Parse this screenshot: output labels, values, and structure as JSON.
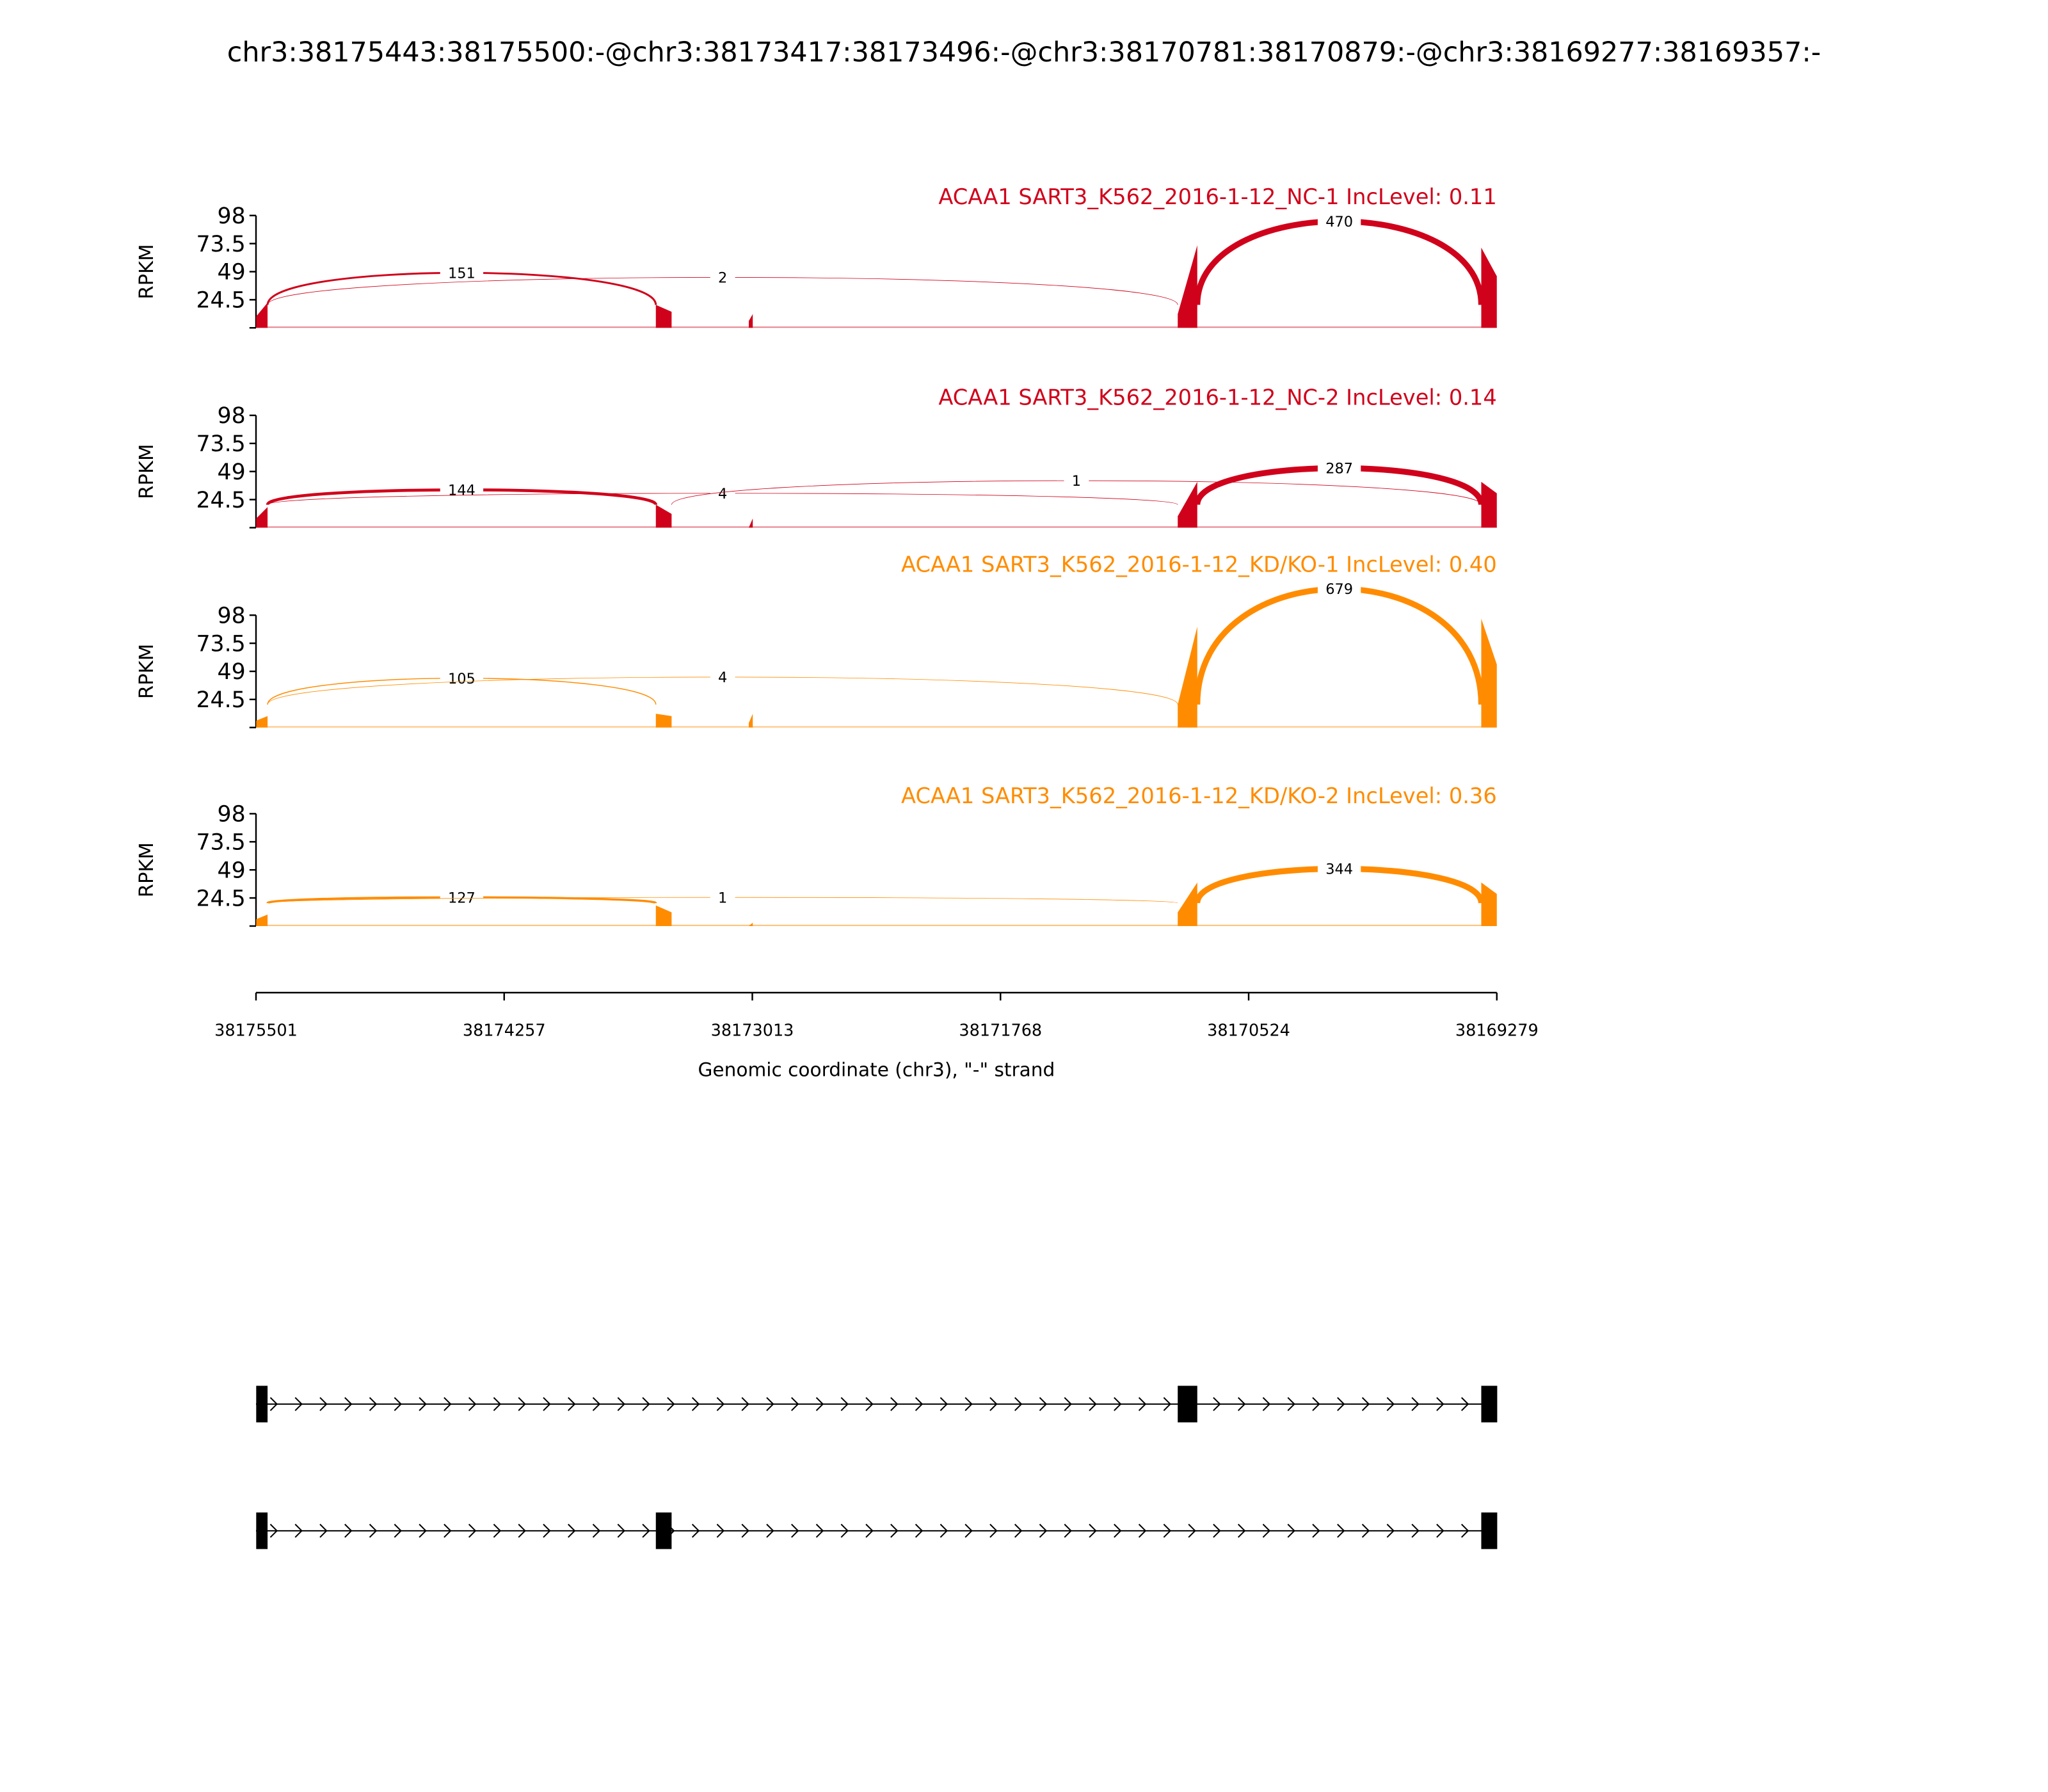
{
  "chart_data": {
    "type": "sashimi",
    "title": "chr3:38175443:38175500:-@chr3:38173417:38173496:-@chr3:38170781:38170879:-@chr3:38169277:38169357:-",
    "xlabel": "Genomic coordinate (chr3), \"-\" strand",
    "xlim": [
      38175501,
      38169279
    ],
    "x_ticks": [
      "38175501",
      "38174257",
      "38173013",
      "38171768",
      "38170524",
      "38169279"
    ],
    "ylabel": "RPKM",
    "ylim": [
      0,
      98
    ],
    "y_ticks": [
      "24.5",
      "49",
      "73.5",
      "98"
    ],
    "exons": [
      {
        "start": 38175500,
        "end": 38175443
      },
      {
        "start": 38173496,
        "end": 38173417
      },
      {
        "start": 38170879,
        "end": 38170781
      },
      {
        "start": 38169357,
        "end": 38169277
      }
    ],
    "panels": [
      {
        "label": "ACAA1 SART3_K562_2016-1-12_NC-1 IncLevel: 0.11",
        "color": "#d0021b",
        "coverage": [
          [
            38175500,
            38175443,
            10,
            22
          ],
          [
            38173496,
            38173417,
            20,
            14
          ],
          [
            38173030,
            38173010,
            6,
            12
          ],
          [
            38170879,
            38170781,
            12,
            72
          ],
          [
            38169357,
            38169279,
            70,
            45
          ]
        ],
        "junctions": [
          {
            "from": 38175443,
            "to": 38173496,
            "count": "151",
            "peak": 48
          },
          {
            "from": 38175443,
            "to": 38170879,
            "count": "2",
            "peak": 44
          },
          {
            "from": 38170781,
            "to": 38169357,
            "count": "470",
            "peak": 93
          }
        ]
      },
      {
        "label": "ACAA1 SART3_K562_2016-1-12_NC-2 IncLevel: 0.14",
        "color": "#d0021b",
        "coverage": [
          [
            38175500,
            38175443,
            8,
            18
          ],
          [
            38173496,
            38173417,
            20,
            12
          ],
          [
            38173030,
            38173010,
            0,
            8
          ],
          [
            38170879,
            38170781,
            10,
            40
          ],
          [
            38169357,
            38169279,
            40,
            30
          ]
        ],
        "junctions": [
          {
            "from": 38175443,
            "to": 38173496,
            "count": "144",
            "peak": 33
          },
          {
            "from": 38175443,
            "to": 38170879,
            "count": "4",
            "peak": 30
          },
          {
            "from": 38173417,
            "to": 38169357,
            "count": "1",
            "peak": 41
          },
          {
            "from": 38170781,
            "to": 38169357,
            "count": "287",
            "peak": 52
          }
        ]
      },
      {
        "label": "ACAA1 SART3_K562_2016-1-12_KD/KO-1 IncLevel: 0.40",
        "color": "#ff8c00",
        "coverage": [
          [
            38175500,
            38175443,
            6,
            10
          ],
          [
            38173496,
            38173417,
            12,
            10
          ],
          [
            38173030,
            38173010,
            4,
            12
          ],
          [
            38170879,
            38170781,
            20,
            88
          ],
          [
            38169357,
            38169279,
            95,
            55
          ]
        ],
        "junctions": [
          {
            "from": 38175443,
            "to": 38173496,
            "count": "105",
            "peak": 43
          },
          {
            "from": 38175443,
            "to": 38170879,
            "count": "4",
            "peak": 44
          },
          {
            "from": 38170781,
            "to": 38169357,
            "count": "679",
            "peak": 121
          }
        ]
      },
      {
        "label": "ACAA1 SART3_K562_2016-1-12_KD/KO-2 IncLevel: 0.36",
        "color": "#ff8c00",
        "coverage": [
          [
            38175500,
            38175443,
            6,
            10
          ],
          [
            38173496,
            38173417,
            18,
            12
          ],
          [
            38173030,
            38173010,
            0,
            3
          ],
          [
            38170879,
            38170781,
            12,
            38
          ],
          [
            38169357,
            38169279,
            38,
            28
          ]
        ],
        "junctions": [
          {
            "from": 38175443,
            "to": 38173496,
            "count": "127",
            "peak": 25
          },
          {
            "from": 38175443,
            "to": 38170879,
            "count": "1",
            "peak": 25
          },
          {
            "from": 38170781,
            "to": 38169357,
            "count": "344",
            "peak": 50
          }
        ]
      }
    ],
    "isoforms": [
      {
        "exons": [
          0,
          2,
          3
        ]
      },
      {
        "exons": [
          0,
          1,
          3
        ]
      }
    ]
  }
}
